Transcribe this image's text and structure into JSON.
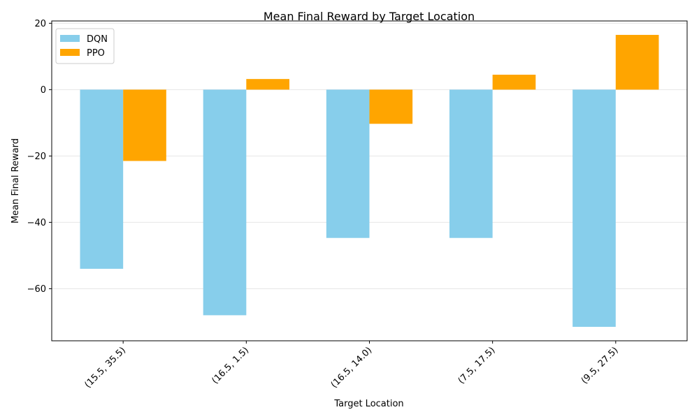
{
  "chart_data": {
    "type": "bar",
    "title": "Mean Final Reward by Target Location",
    "xlabel": "Target Location",
    "ylabel": "Mean Final Reward",
    "categories": [
      "(15.5, 35.5)",
      "(16.5, 1.5)",
      "(16.5, 14.0)",
      "(7.5, 17.5)",
      "(9.5, 27.5)"
    ],
    "series": [
      {
        "name": "DQN",
        "color": "#87CEEB",
        "values": [
          -54,
          -68,
          -44.7,
          -44.7,
          -71.5
        ]
      },
      {
        "name": "PPO",
        "color": "#FFA500",
        "values": [
          -21.5,
          3.2,
          -10.3,
          4.5,
          16.5
        ]
      }
    ],
    "ylim": [
      -75.7,
      20.7
    ],
    "yticks": [
      20,
      0,
      -20,
      -40,
      -60
    ],
    "grid": "y",
    "legend_position": "top-left"
  }
}
